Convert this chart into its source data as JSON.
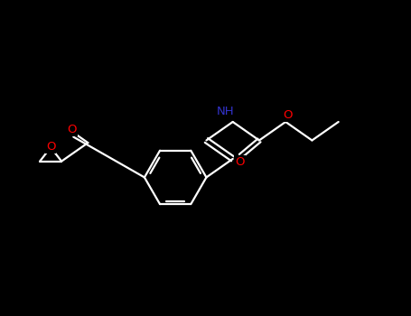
{
  "bg_color": "#000000",
  "bond_color": "#ffffff",
  "oxygen_color": "#ff0000",
  "nitrogen_color": "#3333cc",
  "figsize": [
    4.55,
    3.5
  ],
  "dpi": 100,
  "lw": 1.6,
  "fontsize": 9.5,
  "xlim": [
    0.0,
    9.5
  ],
  "ylim": [
    1.5,
    6.5
  ]
}
